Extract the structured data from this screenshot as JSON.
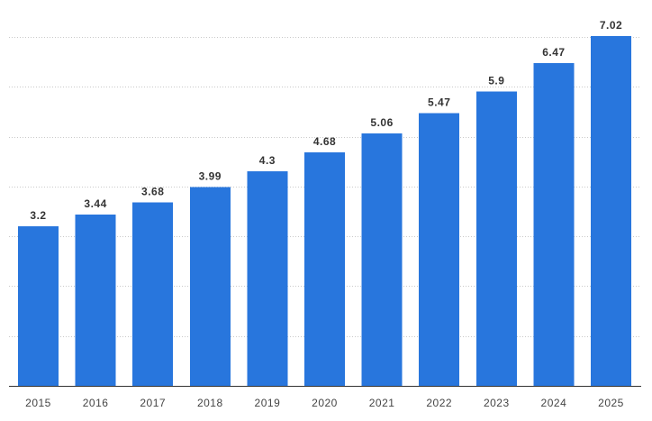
{
  "chart_data": {
    "type": "bar",
    "categories": [
      "2015",
      "2016",
      "2017",
      "2018",
      "2019",
      "2020",
      "2021",
      "2022",
      "2023",
      "2024",
      "2025"
    ],
    "values": [
      3.2,
      3.44,
      3.68,
      3.99,
      4.3,
      4.68,
      5.06,
      5.47,
      5.9,
      6.47,
      7.02
    ],
    "value_labels": [
      "3.2",
      "3.44",
      "3.68",
      "3.99",
      "4.3",
      "4.68",
      "5.06",
      "5.47",
      "5.9",
      "6.47",
      "7.02"
    ],
    "ylim": [
      0,
      7
    ],
    "gridlines": [
      1,
      2,
      3,
      4,
      5,
      6,
      7
    ],
    "grid": true,
    "bar_color": "#2876dd",
    "grid_color": "#c9c9c9",
    "axis_color": "#333333",
    "label_color": "#333333"
  }
}
